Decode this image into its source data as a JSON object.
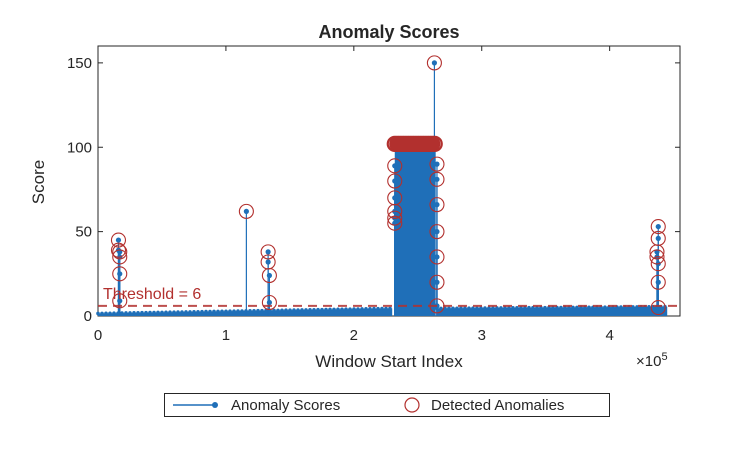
{
  "chart_data": {
    "type": "stem",
    "title": "Anomaly Scores",
    "xlabel": "Window Start Index",
    "ylabel": "Score",
    "x_exponent_label": "×10",
    "x_exponent_power": "5",
    "x_scale": 100000,
    "xlim": [
      0,
      4.55
    ],
    "ylim": [
      0,
      160
    ],
    "xticks": [
      0,
      1,
      2,
      3,
      4
    ],
    "xtick_labels": [
      "0",
      "1",
      "2",
      "3",
      "4"
    ],
    "yticks": [
      0,
      50,
      100,
      150
    ],
    "ytick_labels": [
      "0",
      "50",
      "100",
      "150"
    ],
    "grid": false,
    "legend_position": "bottom-outside",
    "threshold": {
      "value": 6,
      "label": "Threshold = 6",
      "color": "#B2302E"
    },
    "colors": {
      "scores": "#1F6FB8",
      "anomalies": "#B2302E",
      "axis": "#262626"
    },
    "series": [
      {
        "name": "Anomaly Scores",
        "note_baseline": "most windows score between about 1 and 6",
        "baseline_segments": [
          {
            "x_start": 0.0,
            "x_end": 2.3,
            "y_start": 1.5,
            "y_end": 4.5
          },
          {
            "x_start": 2.65,
            "x_end": 4.45,
            "y_start": 4.5,
            "y_end": 5.5
          }
        ],
        "dense_block": {
          "x_start": 2.32,
          "x_end": 2.64,
          "y": 98
        },
        "spikes": [
          {
            "x": 0.16,
            "y": 45
          },
          {
            "x": 0.16,
            "y": 39
          },
          {
            "x": 0.17,
            "y": 38
          },
          {
            "x": 0.17,
            "y": 35
          },
          {
            "x": 0.17,
            "y": 25
          },
          {
            "x": 0.17,
            "y": 9
          },
          {
            "x": 1.16,
            "y": 62
          },
          {
            "x": 1.33,
            "y": 38
          },
          {
            "x": 1.33,
            "y": 32
          },
          {
            "x": 1.34,
            "y": 24
          },
          {
            "x": 1.34,
            "y": 8
          },
          {
            "x": 2.32,
            "y": 89
          },
          {
            "x": 2.32,
            "y": 80
          },
          {
            "x": 2.32,
            "y": 70
          },
          {
            "x": 2.32,
            "y": 62
          },
          {
            "x": 2.32,
            "y": 58
          },
          {
            "x": 2.32,
            "y": 55
          },
          {
            "x": 2.65,
            "y": 90
          },
          {
            "x": 2.65,
            "y": 81
          },
          {
            "x": 2.65,
            "y": 66
          },
          {
            "x": 2.65,
            "y": 50
          },
          {
            "x": 2.65,
            "y": 35
          },
          {
            "x": 2.65,
            "y": 20
          },
          {
            "x": 2.65,
            "y": 6
          },
          {
            "x": 2.63,
            "y": 150
          },
          {
            "x": 4.38,
            "y": 53
          },
          {
            "x": 4.38,
            "y": 46
          },
          {
            "x": 4.37,
            "y": 38
          },
          {
            "x": 4.37,
            "y": 35
          },
          {
            "x": 4.38,
            "y": 31
          },
          {
            "x": 4.38,
            "y": 20
          },
          {
            "x": 4.38,
            "y": 5
          }
        ]
      },
      {
        "name": "Detected Anomalies",
        "points": [
          {
            "x": 0.16,
            "y": 45
          },
          {
            "x": 0.16,
            "y": 39
          },
          {
            "x": 0.17,
            "y": 38
          },
          {
            "x": 0.17,
            "y": 35
          },
          {
            "x": 0.17,
            "y": 25
          },
          {
            "x": 0.17,
            "y": 9
          },
          {
            "x": 1.16,
            "y": 62
          },
          {
            "x": 1.33,
            "y": 38
          },
          {
            "x": 1.33,
            "y": 32
          },
          {
            "x": 1.34,
            "y": 24
          },
          {
            "x": 1.34,
            "y": 8
          },
          {
            "x": 2.32,
            "y": 89
          },
          {
            "x": 2.32,
            "y": 80
          },
          {
            "x": 2.32,
            "y": 70
          },
          {
            "x": 2.32,
            "y": 62
          },
          {
            "x": 2.32,
            "y": 58
          },
          {
            "x": 2.32,
            "y": 55
          },
          {
            "x": 2.65,
            "y": 90
          },
          {
            "x": 2.65,
            "y": 81
          },
          {
            "x": 2.65,
            "y": 66
          },
          {
            "x": 2.65,
            "y": 50
          },
          {
            "x": 2.65,
            "y": 35
          },
          {
            "x": 2.65,
            "y": 20
          },
          {
            "x": 2.65,
            "y": 6
          },
          {
            "x": 2.63,
            "y": 150
          },
          {
            "x": 4.38,
            "y": 53
          },
          {
            "x": 4.38,
            "y": 46
          },
          {
            "x": 4.37,
            "y": 38
          },
          {
            "x": 4.37,
            "y": 35
          },
          {
            "x": 4.38,
            "y": 31
          },
          {
            "x": 4.38,
            "y": 20
          },
          {
            "x": 4.38,
            "y": 5
          }
        ],
        "band": {
          "x_start": 2.32,
          "x_end": 2.64,
          "y": 102
        }
      }
    ]
  },
  "legend": {
    "items": [
      {
        "label": "Anomaly Scores"
      },
      {
        "label": "Detected Anomalies"
      }
    ]
  }
}
